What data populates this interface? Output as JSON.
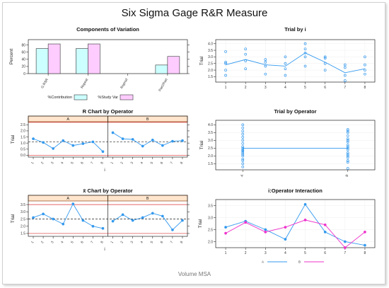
{
  "title": "Six Sigma Gage R&R Measure",
  "footer": "Volume MSA",
  "colors": {
    "line_blue": "#3399ee",
    "bar_cyan": "#ccffff",
    "bar_pink": "#ffccff",
    "line_pink": "#ee33cc",
    "strip": "#ffe5cc",
    "strip_border": "#8b4513",
    "panel_border": "#222222",
    "limit_red": "#dd3333"
  },
  "chart_data": [
    {
      "id": "components",
      "type": "bar",
      "title": "Components of Variation",
      "ylabel": "Percent",
      "categories": [
        "G.R&R",
        "Repeat",
        "Reprod",
        "Part2Part"
      ],
      "series": [
        {
          "name": "%Contribution",
          "values": [
            70,
            70,
            0,
            24
          ]
        },
        {
          "name": "%Study Var",
          "values": [
            83,
            83,
            0,
            48
          ]
        }
      ],
      "yticks": [
        "0",
        "20",
        "40",
        "60",
        "80"
      ],
      "ylim": [
        0,
        95
      ],
      "legend": "bottom"
    },
    {
      "id": "trial_by_i",
      "type": "scatter",
      "title": "Trial by i",
      "ylabel": "Trial",
      "xticks": [
        "1",
        "2",
        "3",
        "4",
        "5",
        "6",
        "7",
        "8"
      ],
      "yticks": [
        "1.5",
        "2.0",
        "2.5",
        "3.0",
        "3.5",
        "4.0"
      ],
      "ylim": [
        1.2,
        4.2
      ],
      "points": [
        [
          1,
          1.6
        ],
        [
          1,
          2.0
        ],
        [
          1,
          2.5
        ],
        [
          1,
          2.6
        ],
        [
          1,
          3.4
        ],
        [
          2,
          2.1
        ],
        [
          2,
          2.7
        ],
        [
          2,
          3.2
        ],
        [
          2,
          3.6
        ],
        [
          3,
          1.7
        ],
        [
          3,
          2.3
        ],
        [
          3,
          2.6
        ],
        [
          3,
          2.8
        ],
        [
          4,
          1.6
        ],
        [
          4,
          2.1
        ],
        [
          4,
          2.5
        ],
        [
          4,
          3.0
        ],
        [
          5,
          2.3
        ],
        [
          5,
          3.0
        ],
        [
          5,
          3.3
        ],
        [
          5,
          3.6
        ],
        [
          5,
          4.0
        ],
        [
          6,
          2.0
        ],
        [
          6,
          2.5
        ],
        [
          6,
          2.9
        ],
        [
          6,
          3.0
        ],
        [
          7,
          1.2
        ],
        [
          7,
          1.6
        ],
        [
          7,
          2.2
        ],
        [
          7,
          2.4
        ],
        [
          8,
          1.7
        ],
        [
          8,
          2.0
        ],
        [
          8,
          2.4
        ],
        [
          8,
          3.0
        ]
      ],
      "mean_line": [
        2.4,
        2.8,
        2.4,
        2.3,
        3.3,
        2.6,
        1.8,
        2.1
      ]
    },
    {
      "id": "r_chart",
      "type": "line",
      "title": "R Chart by Operator",
      "ylabel": "Trial",
      "xlabel": "i",
      "panels": [
        {
          "label": "A",
          "x": [
            "1",
            "2",
            "3",
            "4",
            "5",
            "6",
            "7",
            "8"
          ],
          "values": [
            1.35,
            1.05,
            0.55,
            1.2,
            0.8,
            0.95,
            1.1,
            0.3
          ]
        },
        {
          "label": "B",
          "x": [
            "1",
            "2",
            "3",
            "4",
            "5",
            "6",
            "7",
            "8"
          ],
          "values": [
            1.85,
            1.35,
            1.3,
            0.75,
            1.25,
            0.8,
            1.15,
            1.2
          ]
        }
      ],
      "center_line": 1.1,
      "limits": [
        0,
        2.7
      ],
      "yticks": [
        "0.0",
        "0.5",
        "1.0",
        "1.5",
        "2.0",
        "2.5"
      ],
      "ylim": [
        -0.15,
        2.75
      ]
    },
    {
      "id": "trial_by_operator",
      "type": "scatter",
      "title": "Trial by Operator",
      "ylabel": "Trial",
      "xticks": [
        "A",
        "B"
      ],
      "yticks": [
        "1.5",
        "2.0",
        "2.5",
        "3.0",
        "3.5",
        "4.0"
      ],
      "ylim": [
        1.2,
        4.2
      ],
      "groups": [
        {
          "label": "A",
          "values": [
            1.3,
            1.5,
            1.7,
            1.8,
            2.0,
            2.1,
            2.2,
            2.3,
            2.35,
            2.4,
            2.5,
            2.6,
            2.8,
            3.0,
            3.2,
            3.4,
            3.6,
            3.8,
            4.0
          ]
        },
        {
          "label": "B",
          "values": [
            1.2,
            1.6,
            1.7,
            1.9,
            2.0,
            2.1,
            2.2,
            2.4,
            2.5,
            2.6,
            2.7,
            2.9,
            3.0,
            3.1,
            3.3,
            3.5,
            3.6,
            3.7
          ]
        }
      ],
      "mean_line": [
        2.5,
        2.5
      ]
    },
    {
      "id": "xbar_chart",
      "type": "line",
      "title": "x̄ Chart by Operator",
      "ylabel": "Trial",
      "xlabel": "i",
      "panels": [
        {
          "label": "A",
          "x": [
            "1",
            "2",
            "3",
            "4",
            "5",
            "6",
            "7",
            "8"
          ],
          "values": [
            2.6,
            2.85,
            2.5,
            2.15,
            3.55,
            2.4,
            2.0,
            1.85
          ]
        },
        {
          "label": "B",
          "x": [
            "1",
            "2",
            "3",
            "4",
            "5",
            "6",
            "7",
            "8"
          ],
          "values": [
            2.35,
            2.8,
            2.4,
            2.6,
            2.9,
            2.7,
            1.75,
            2.4
          ]
        }
      ],
      "center_line": 2.5,
      "limits": [
        1.5,
        3.5
      ],
      "yticks": [
        "1.5",
        "2.0",
        "2.5",
        "3.0",
        "3.5"
      ],
      "ylim": [
        1.3,
        3.75
      ]
    },
    {
      "id": "interaction",
      "type": "line",
      "title": "i:Operator Interaction",
      "ylabel": "Trial",
      "x": [
        "1",
        "2",
        "3",
        "4",
        "5",
        "6",
        "7",
        "8"
      ],
      "series": [
        {
          "name": "A",
          "values": [
            2.6,
            2.85,
            2.5,
            2.1,
            3.55,
            2.4,
            2.0,
            1.85
          ]
        },
        {
          "name": "B",
          "values": [
            2.35,
            2.8,
            2.4,
            2.6,
            2.9,
            2.7,
            1.75,
            2.4
          ]
        }
      ],
      "yticks": [
        "2.0",
        "2.5",
        "3.0",
        "3.5"
      ],
      "ylim": [
        1.75,
        3.75
      ],
      "legend": "bottom"
    }
  ]
}
